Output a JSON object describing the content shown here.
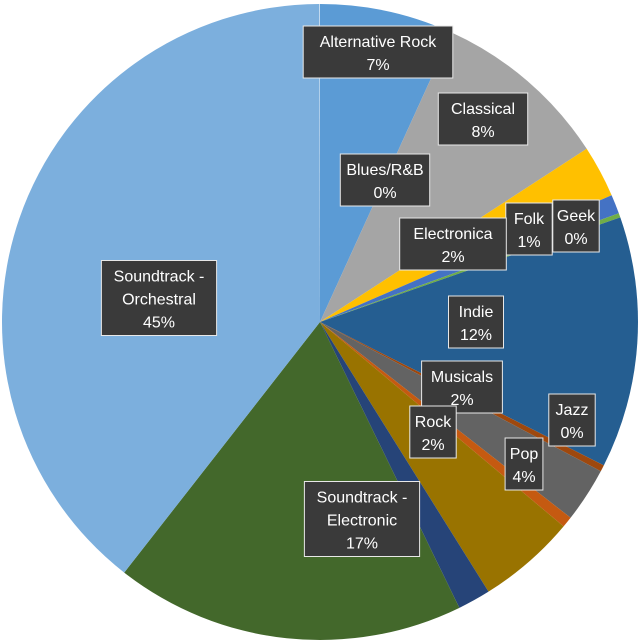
{
  "chart_data": {
    "type": "pie",
    "title": "",
    "slices": [
      {
        "name": "Alternative Rock",
        "value": 7,
        "label": "7%",
        "color": "#5b9bd5"
      },
      {
        "name": "Classical",
        "value": 8,
        "label": "8%",
        "color": "#a5a5a5"
      },
      {
        "name": "Folk",
        "value": 1,
        "label": "1%",
        "color": "#ffc000"
      },
      {
        "name": "Geek",
        "value": 0,
        "label": "0%",
        "color": "#4472c4"
      },
      {
        "name": "Blues/R&B",
        "value": 0,
        "label": "0%",
        "color": "#70ad47"
      },
      {
        "name": "Indie",
        "value": 12,
        "label": "12%",
        "color": "#255e91"
      },
      {
        "name": "Electronica",
        "value": 2,
        "label": "2%",
        "color": "#9e480e"
      },
      {
        "name": "Musicals",
        "value": 2,
        "label": "2%",
        "color": "#636363"
      },
      {
        "name": "Jazz",
        "value": 0,
        "label": "0%",
        "color": "#c55a11"
      },
      {
        "name": "Pop",
        "value": 4,
        "label": "4%",
        "color": "#997300"
      },
      {
        "name": "Rock",
        "value": 2,
        "label": "2%",
        "color": "#264478"
      },
      {
        "name": "Soundtrack - Electronic",
        "value": 17,
        "label": "17%",
        "color": "#43682b"
      },
      {
        "name": "Soundtrack - Orchestral",
        "value": 45,
        "label": "45%",
        "color": "#7cafdd"
      }
    ]
  }
}
